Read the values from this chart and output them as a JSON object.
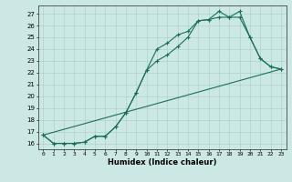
{
  "title": "",
  "xlabel": "Humidex (Indice chaleur)",
  "bg_color": "#cce8e4",
  "line_color": "#1a6e5e",
  "xlim": [
    -0.5,
    23.5
  ],
  "ylim": [
    15.5,
    27.7
  ],
  "xticks": [
    0,
    1,
    2,
    3,
    4,
    5,
    6,
    7,
    8,
    9,
    10,
    11,
    12,
    13,
    14,
    15,
    16,
    17,
    18,
    19,
    20,
    21,
    22,
    23
  ],
  "yticks": [
    16,
    17,
    18,
    19,
    20,
    21,
    22,
    23,
    24,
    25,
    26,
    27
  ],
  "line1_x": [
    0,
    1,
    2,
    3,
    4,
    5,
    6,
    7,
    8,
    9,
    10,
    11,
    12,
    13,
    14,
    15,
    16,
    17,
    18,
    19,
    20,
    21,
    22,
    23
  ],
  "line1_y": [
    16.7,
    16.0,
    16.0,
    16.0,
    16.1,
    16.6,
    16.6,
    17.4,
    18.6,
    20.3,
    22.2,
    24.0,
    24.5,
    25.2,
    25.5,
    26.4,
    26.5,
    27.2,
    26.7,
    27.2,
    25.0,
    23.2,
    22.5,
    22.3
  ],
  "line2_x": [
    0,
    1,
    2,
    3,
    4,
    5,
    6,
    7,
    8,
    9,
    10,
    11,
    12,
    13,
    14,
    15,
    16,
    17,
    18,
    19,
    20,
    21,
    22,
    23
  ],
  "line2_y": [
    16.7,
    16.0,
    16.0,
    16.0,
    16.1,
    16.6,
    16.6,
    17.4,
    18.6,
    20.3,
    22.2,
    23.0,
    23.5,
    24.2,
    25.0,
    26.4,
    26.5,
    26.7,
    26.7,
    26.7,
    25.0,
    23.2,
    22.5,
    22.3
  ],
  "line3_x": [
    0,
    23
  ],
  "line3_y": [
    16.7,
    22.3
  ]
}
